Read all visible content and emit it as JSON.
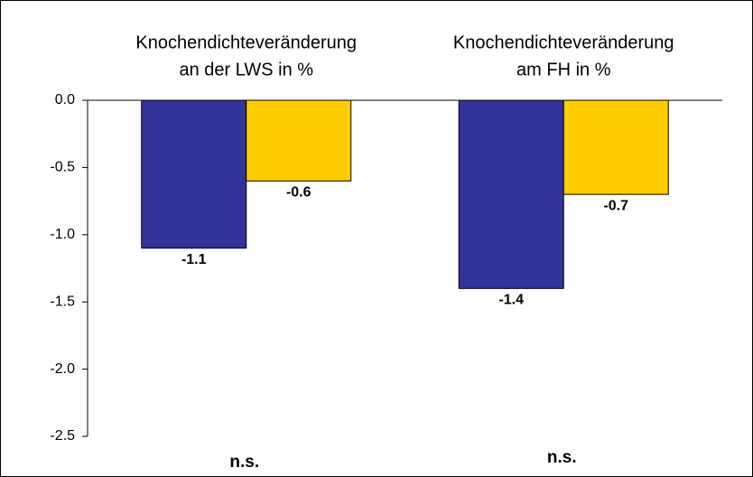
{
  "chart_data": {
    "type": "bar",
    "categories": [
      [
        "Knochendichteveränderung",
        "an der LWS in %"
      ],
      [
        "Knochendichteveränderung",
        "am FH in %"
      ]
    ],
    "series": [
      {
        "color": "#333399",
        "values": [
          -1.1,
          -1.4
        ]
      },
      {
        "color": "#ffcc00",
        "values": [
          -0.6,
          -0.7
        ]
      }
    ],
    "annotations": [
      "n.s.",
      "n.s."
    ],
    "ylim": [
      -2.5,
      0
    ],
    "yticks": [
      {
        "value": 0,
        "label": "0.0"
      },
      -0.5,
      {
        "value": -1,
        "label": "-1.0"
      },
      -1.5,
      {
        "value": -2,
        "label": "-2.0"
      },
      -2.5
    ],
    "grid": false
  }
}
